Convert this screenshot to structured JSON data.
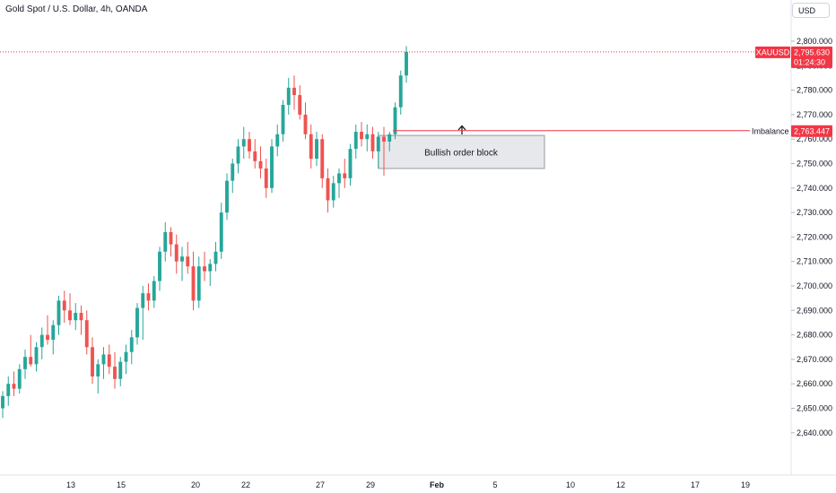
{
  "header": {
    "title": "Gold Spot / U.S. Dollar, 4h, OANDA",
    "currency": "USD"
  },
  "price_tags": {
    "symbol": "XAUUSD",
    "last_price": "2,795.630",
    "countdown": "01:24:30",
    "imbalance_label": "Imbalance",
    "imbalance_price": "2,763.447"
  },
  "annotations": {
    "order_block_label": "Bullish order block"
  },
  "colors": {
    "up": "#26a69a",
    "down": "#ef5350",
    "tag_red": "#f23645",
    "imbalance_line": "#f23645"
  },
  "chart_data": {
    "type": "candlestick",
    "title": "Gold Spot / U.S. Dollar, 4h, OANDA",
    "y_ticks": [
      2640,
      2650,
      2660,
      2670,
      2680,
      2690,
      2700,
      2710,
      2720,
      2730,
      2740,
      2750,
      2760,
      2770,
      2780,
      2790,
      2800
    ],
    "y_tick_labels": [
      "2,640.000",
      "2,650.000",
      "2,660.000",
      "2,670.000",
      "2,680.000",
      "2,690.000",
      "2,700.000",
      "2,710.000",
      "2,720.000",
      "2,730.000",
      "2,740.000",
      "2,750.000",
      "2,760.000",
      "2,770.000",
      "2,780.000",
      "2,790.000",
      "2,800.000"
    ],
    "x_tick_labels": [
      "13",
      "15",
      "20",
      "22",
      "27",
      "29",
      "Feb",
      "5",
      "10",
      "12",
      "17",
      "19"
    ],
    "last_price": 2795.63,
    "imbalance_level": 2763.447,
    "order_block": {
      "low": 2748,
      "high": 2761.5
    },
    "ohlc": [
      [
        2650,
        2657,
        2646,
        2655
      ],
      [
        2655,
        2663,
        2651,
        2660
      ],
      [
        2660,
        2665,
        2655,
        2658
      ],
      [
        2658,
        2668,
        2656,
        2666
      ],
      [
        2666,
        2674,
        2662,
        2671
      ],
      [
        2671,
        2680,
        2667,
        2668
      ],
      [
        2668,
        2677,
        2665,
        2675
      ],
      [
        2675,
        2683,
        2670,
        2680
      ],
      [
        2680,
        2688,
        2676,
        2678
      ],
      [
        2678,
        2686,
        2672,
        2684
      ],
      [
        2684,
        2696,
        2680,
        2694
      ],
      [
        2694,
        2698,
        2685,
        2690
      ],
      [
        2690,
        2697,
        2684,
        2686
      ],
      [
        2686,
        2693,
        2682,
        2689
      ],
      [
        2689,
        2692,
        2680,
        2686
      ],
      [
        2686,
        2690,
        2672,
        2675
      ],
      [
        2675,
        2679,
        2660,
        2663
      ],
      [
        2663,
        2670,
        2656,
        2668
      ],
      [
        2668,
        2675,
        2662,
        2672
      ],
      [
        2672,
        2676,
        2664,
        2667
      ],
      [
        2667,
        2673,
        2658,
        2662
      ],
      [
        2662,
        2671,
        2659,
        2669
      ],
      [
        2669,
        2676,
        2664,
        2673
      ],
      [
        2673,
        2682,
        2668,
        2679
      ],
      [
        2679,
        2693,
        2676,
        2691
      ],
      [
        2691,
        2700,
        2678,
        2697
      ],
      [
        2697,
        2701,
        2690,
        2694
      ],
      [
        2694,
        2704,
        2691,
        2702
      ],
      [
        2702,
        2716,
        2698,
        2714
      ],
      [
        2714,
        2726,
        2710,
        2722
      ],
      [
        2722,
        2724,
        2712,
        2717
      ],
      [
        2717,
        2721,
        2705,
        2710
      ],
      [
        2710,
        2716,
        2702,
        2712
      ],
      [
        2712,
        2718,
        2705,
        2708
      ],
      [
        2708,
        2714,
        2690,
        2694
      ],
      [
        2694,
        2712,
        2691,
        2708
      ],
      [
        2708,
        2714,
        2702,
        2706
      ],
      [
        2706,
        2711,
        2700,
        2709
      ],
      [
        2709,
        2718,
        2706,
        2714
      ],
      [
        2714,
        2734,
        2711,
        2730
      ],
      [
        2730,
        2746,
        2727,
        2743
      ],
      [
        2743,
        2752,
        2738,
        2750
      ],
      [
        2750,
        2760,
        2746,
        2757
      ],
      [
        2757,
        2765,
        2752,
        2760
      ],
      [
        2760,
        2763,
        2752,
        2755
      ],
      [
        2755,
        2760,
        2748,
        2751
      ],
      [
        2751,
        2757,
        2744,
        2748
      ],
      [
        2748,
        2752,
        2736,
        2740
      ],
      [
        2740,
        2760,
        2738,
        2757
      ],
      [
        2757,
        2766,
        2753,
        2762
      ],
      [
        2762,
        2776,
        2759,
        2774
      ],
      [
        2774,
        2785,
        2770,
        2781
      ],
      [
        2781,
        2786,
        2772,
        2778
      ],
      [
        2778,
        2782,
        2768,
        2770
      ],
      [
        2770,
        2775,
        2760,
        2762
      ],
      [
        2762,
        2766,
        2748,
        2752
      ],
      [
        2752,
        2763,
        2749,
        2760
      ],
      [
        2760,
        2762,
        2740,
        2744
      ],
      [
        2744,
        2748,
        2730,
        2735
      ],
      [
        2735,
        2745,
        2732,
        2742
      ],
      [
        2742,
        2748,
        2736,
        2746
      ],
      [
        2746,
        2752,
        2740,
        2744
      ],
      [
        2744,
        2758,
        2741,
        2756
      ],
      [
        2756,
        2766,
        2752,
        2763
      ],
      [
        2763,
        2767,
        2757,
        2760
      ],
      [
        2760,
        2766,
        2755,
        2762
      ],
      [
        2762,
        2765,
        2752,
        2755
      ],
      [
        2755,
        2763,
        2748,
        2761
      ],
      [
        2761,
        2765,
        2745,
        2759
      ],
      [
        2759,
        2763,
        2755,
        2762
      ],
      [
        2762,
        2775,
        2760,
        2773
      ],
      [
        2773,
        2788,
        2770,
        2786
      ],
      [
        2786,
        2798,
        2783,
        2795.63
      ]
    ]
  }
}
